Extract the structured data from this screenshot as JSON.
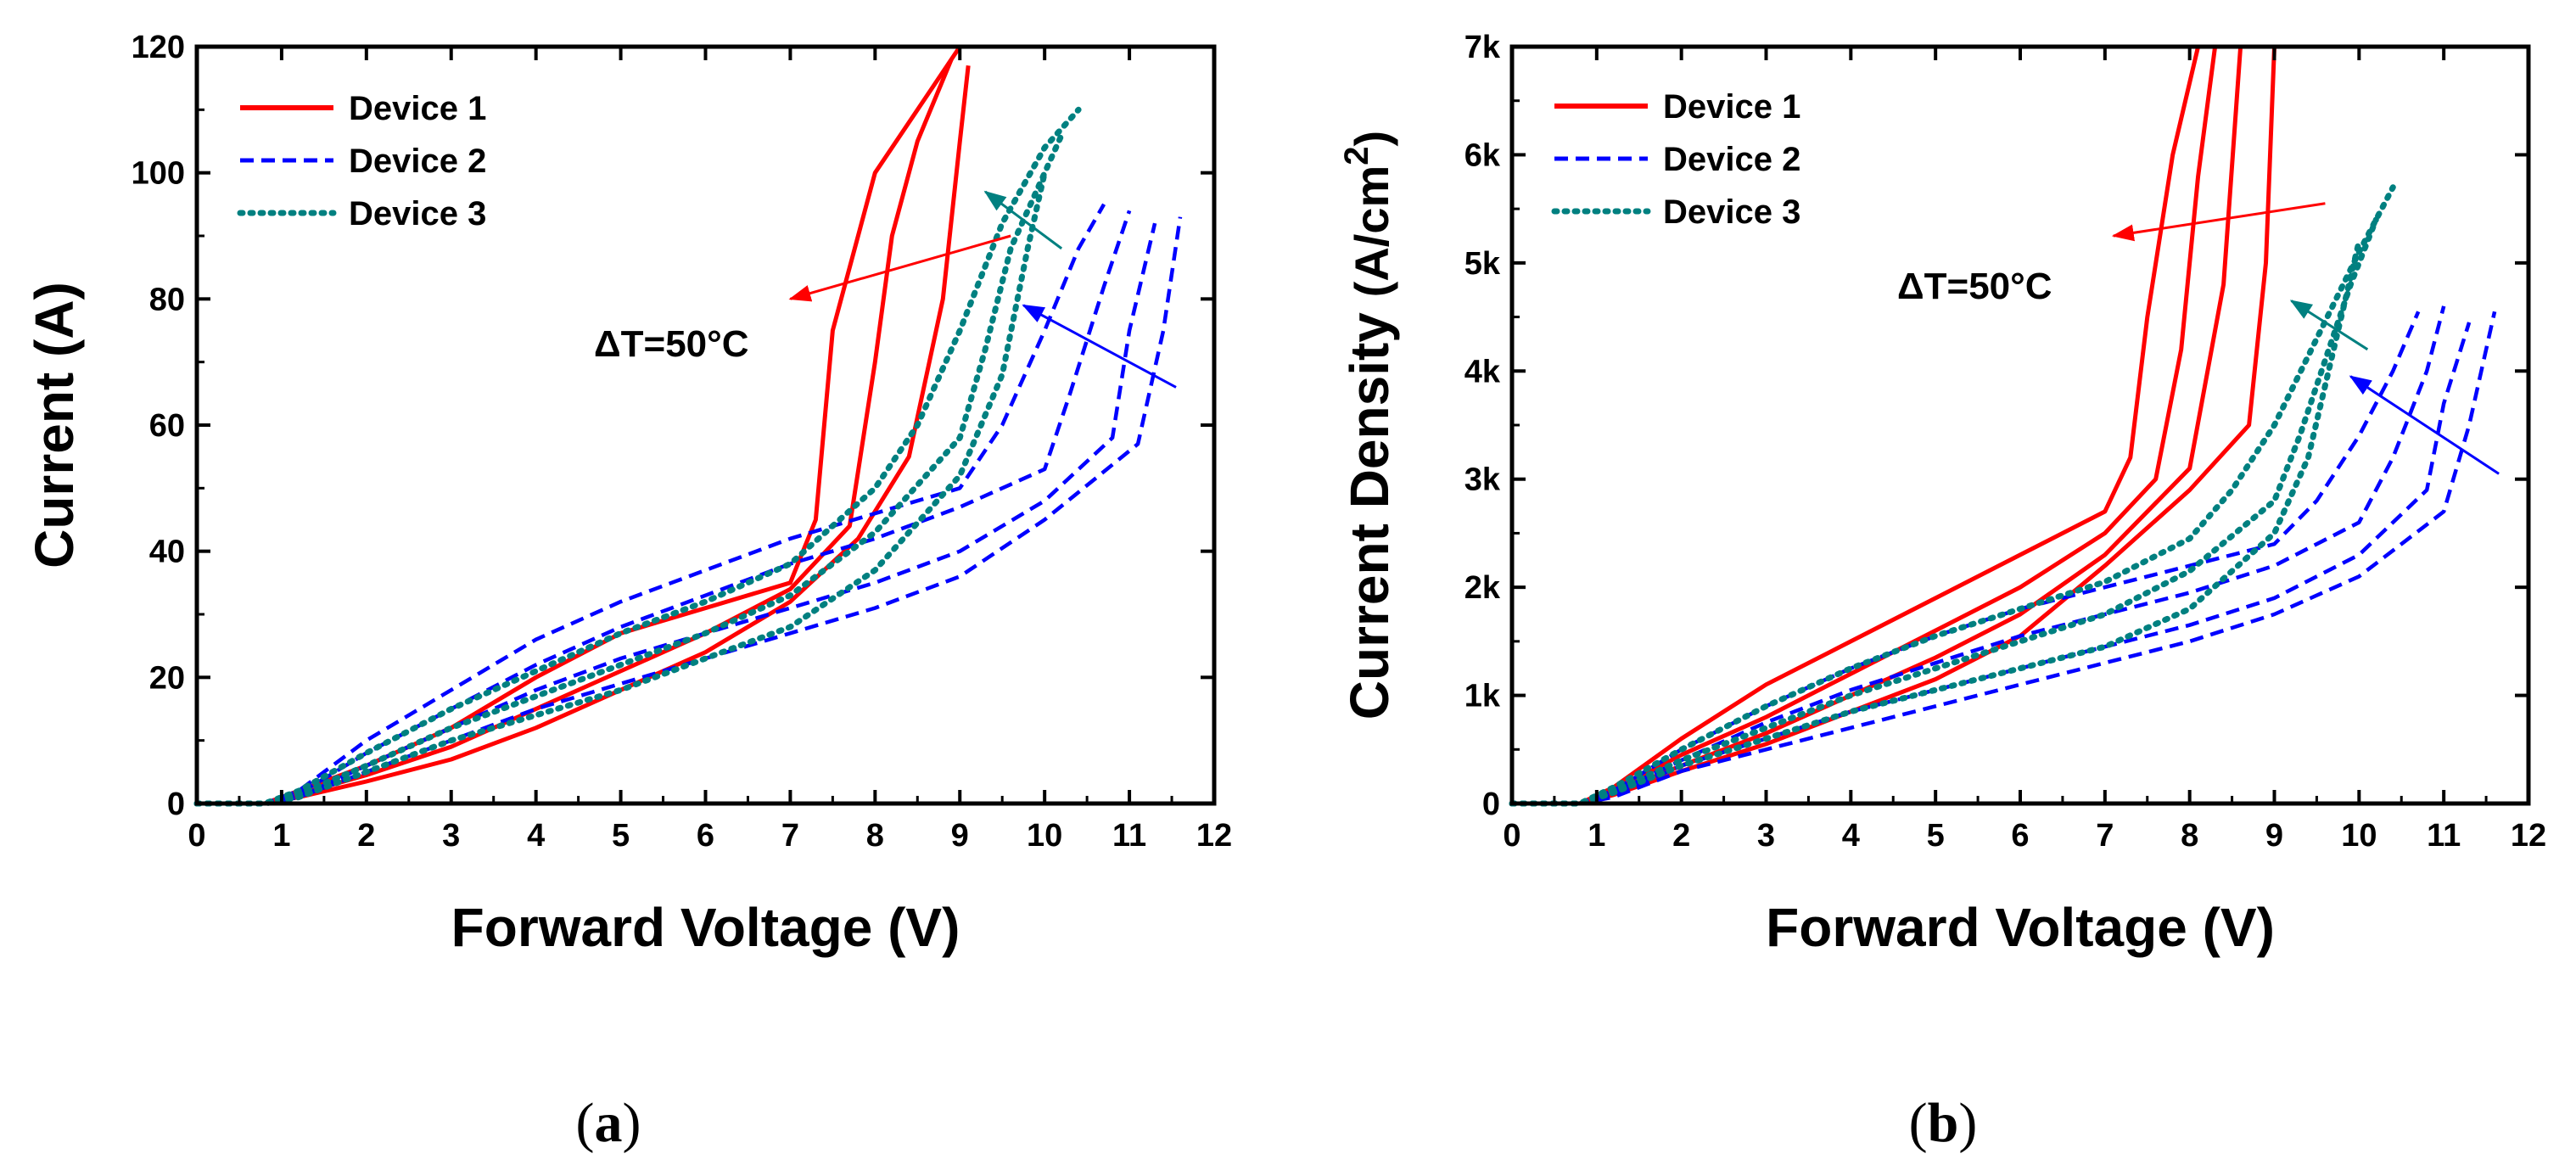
{
  "chart_data": [
    {
      "type": "line",
      "panel_label": "(a)",
      "xlabel": "Forward Voltage (V)",
      "ylabel": "Current (A)",
      "xlim": [
        0,
        12
      ],
      "ylim": [
        0,
        120
      ],
      "x_ticks": [
        "0",
        "1",
        "2",
        "3",
        "4",
        "5",
        "6",
        "7",
        "8",
        "9",
        "10",
        "11",
        "12"
      ],
      "y_ticks": [
        "0",
        "20",
        "40",
        "60",
        "80",
        "100",
        "120"
      ],
      "legend_position": "top-left",
      "legend": [
        {
          "label": "Device 1",
          "color": "#ff0000",
          "style": "solid"
        },
        {
          "label": "Device 2",
          "color": "#0000ff",
          "style": "dashed"
        },
        {
          "label": "Device 3",
          "color": "#008080",
          "style": "dotted"
        }
      ],
      "annotation": "ΔT=50°C",
      "series": [
        {
          "device": "Device 1",
          "color": "#ff0000",
          "style": "solid",
          "x": [
            0,
            0.8,
            1.2,
            2,
            3,
            4,
            5,
            6,
            7,
            7.3,
            7.5,
            8.0,
            8.6,
            9.0
          ],
          "y": [
            0,
            0,
            2,
            6,
            12,
            20,
            27,
            31,
            35,
            45,
            75,
            100,
            112,
            120
          ]
        },
        {
          "device": "Device 1",
          "color": "#ff0000",
          "style": "solid",
          "x": [
            0,
            0.8,
            1.2,
            2,
            3,
            4,
            5,
            6,
            7,
            7.7,
            8.0,
            8.2,
            8.5,
            8.9
          ],
          "y": [
            0,
            0,
            1.5,
            4.5,
            9,
            15,
            21,
            27,
            34,
            44,
            70,
            90,
            105,
            118
          ]
        },
        {
          "device": "Device 1",
          "color": "#ff0000",
          "style": "solid",
          "x": [
            0,
            0.8,
            1.2,
            2,
            3,
            4,
            5,
            6,
            7,
            7.8,
            8.4,
            8.8,
            9.0,
            9.1
          ],
          "y": [
            0,
            0,
            1,
            3.5,
            7,
            12,
            18,
            24,
            32,
            42,
            55,
            80,
            105,
            117
          ]
        },
        {
          "device": "Device 2",
          "color": "#0000ff",
          "style": "dashed",
          "x": [
            0,
            0.8,
            1.2,
            2,
            3,
            4,
            5,
            6,
            7,
            8,
            9,
            9.5,
            10.0,
            10.4,
            10.7
          ],
          "y": [
            0,
            0,
            2,
            10,
            18,
            26,
            32,
            37,
            42,
            46,
            50,
            60,
            75,
            88,
            95
          ]
        },
        {
          "device": "Device 2",
          "color": "#0000ff",
          "style": "dashed",
          "x": [
            0,
            0.8,
            1.2,
            2,
            3,
            4,
            5,
            6,
            7,
            8,
            9,
            10,
            10.3,
            10.7,
            11.0
          ],
          "y": [
            0,
            0,
            1.5,
            8,
            15,
            22,
            28,
            33,
            38,
            42,
            47,
            53,
            65,
            82,
            94
          ]
        },
        {
          "device": "Device 2",
          "color": "#0000ff",
          "style": "dashed",
          "x": [
            0,
            0.8,
            1.2,
            2,
            3,
            4,
            5,
            6,
            7,
            8,
            9,
            10,
            10.8,
            11.0,
            11.3
          ],
          "y": [
            0,
            0,
            1,
            6,
            12,
            18,
            23,
            27,
            31,
            35,
            40,
            48,
            58,
            75,
            92
          ]
        },
        {
          "device": "Device 2",
          "color": "#0000ff",
          "style": "dashed",
          "x": [
            0,
            0.8,
            1.2,
            2,
            3,
            4,
            5,
            6,
            7,
            8,
            9,
            10,
            11.1,
            11.4,
            11.6
          ],
          "y": [
            0,
            0,
            1,
            5,
            10,
            15,
            19,
            23,
            27,
            31,
            36,
            45,
            57,
            75,
            93
          ]
        },
        {
          "device": "Device 3",
          "color": "#008080",
          "style": "dotted",
          "x": [
            0,
            0.8,
            1.2,
            2,
            3,
            4,
            5,
            6,
            7,
            8,
            8.5,
            9.0,
            9.5,
            10.0,
            10.4
          ],
          "y": [
            0,
            0,
            2,
            8,
            15,
            21,
            27,
            32,
            38,
            50,
            60,
            75,
            92,
            104,
            110
          ]
        },
        {
          "device": "Device 3",
          "color": "#008080",
          "style": "dotted",
          "x": [
            0,
            0.8,
            1.2,
            2,
            3,
            4,
            5,
            6,
            7,
            8,
            9,
            9.3,
            9.6,
            10.0,
            10.2
          ],
          "y": [
            0,
            0,
            1.5,
            6,
            12,
            17,
            22,
            27,
            33,
            43,
            58,
            72,
            88,
            100,
            106
          ]
        },
        {
          "device": "Device 3",
          "color": "#008080",
          "style": "dotted",
          "x": [
            0,
            0.8,
            1.2,
            2,
            3,
            4,
            5,
            6,
            7,
            8,
            9,
            9.5,
            9.8,
            10.0
          ],
          "y": [
            0,
            0,
            1,
            5,
            10,
            14,
            18,
            23,
            28,
            37,
            52,
            68,
            88,
            100
          ]
        }
      ],
      "arrows": [
        {
          "color": "#ff0000",
          "from": [
            9.6,
            90
          ],
          "to": [
            7.0,
            80
          ]
        },
        {
          "color": "#008080",
          "from": [
            10.2,
            88
          ],
          "to": [
            9.3,
            97
          ]
        },
        {
          "color": "#0000ff",
          "from": [
            11.55,
            66
          ],
          "to": [
            9.75,
            79
          ]
        }
      ]
    },
    {
      "type": "line",
      "panel_label": "(b)",
      "xlabel": "Forward Voltage (V)",
      "ylabel": "Current Density (A/cm2)",
      "xlim": [
        0,
        12
      ],
      "ylim": [
        0,
        7000
      ],
      "x_ticks": [
        "0",
        "1",
        "2",
        "3",
        "4",
        "5",
        "6",
        "7",
        "8",
        "9",
        "10",
        "11",
        "12"
      ],
      "y_ticks": [
        "0",
        "1k",
        "2k",
        "3k",
        "4k",
        "5k",
        "6k",
        "7k"
      ],
      "legend_position": "top-left",
      "legend": [
        {
          "label": "Device 1",
          "color": "#ff0000",
          "style": "solid"
        },
        {
          "label": "Device 2",
          "color": "#0000ff",
          "style": "dashed"
        },
        {
          "label": "Device 3",
          "color": "#008080",
          "style": "dotted"
        }
      ],
      "annotation": "ΔT=50°C",
      "series": [
        {
          "device": "Device 1",
          "color": "#ff0000",
          "style": "solid",
          "x": [
            0,
            0.8,
            1.2,
            2,
            3,
            4,
            5,
            6,
            7,
            7.3,
            7.5,
            7.8,
            8.1
          ],
          "y": [
            0,
            0,
            150,
            600,
            1100,
            1500,
            1900,
            2300,
            2700,
            3200,
            4500,
            6000,
            7000
          ]
        },
        {
          "device": "Device 1",
          "color": "#ff0000",
          "style": "solid",
          "x": [
            0,
            0.8,
            1.2,
            2,
            3,
            4,
            5,
            6,
            7,
            7.6,
            7.9,
            8.1,
            8.3
          ],
          "y": [
            0,
            0,
            120,
            450,
            800,
            1200,
            1600,
            2000,
            2500,
            3000,
            4200,
            5800,
            7000
          ]
        },
        {
          "device": "Device 1",
          "color": "#ff0000",
          "style": "solid",
          "x": [
            0,
            0.8,
            1.2,
            2,
            3,
            4,
            5,
            6,
            7,
            8,
            8.4,
            8.6
          ],
          "y": [
            0,
            0,
            100,
            350,
            650,
            1000,
            1350,
            1750,
            2300,
            3100,
            4800,
            7000
          ]
        },
        {
          "device": "Device 1",
          "color": "#ff0000",
          "style": "solid",
          "x": [
            0,
            0.8,
            1.2,
            2,
            3,
            4,
            5,
            6,
            7,
            8,
            8.7,
            8.9,
            9.0
          ],
          "y": [
            0,
            0,
            80,
            300,
            550,
            850,
            1150,
            1550,
            2200,
            2900,
            3500,
            5000,
            7000
          ]
        },
        {
          "device": "Device 2",
          "color": "#0000ff",
          "style": "dashed",
          "x": [
            0,
            0.8,
            1.2,
            2,
            3,
            4,
            5,
            6,
            7,
            8,
            9,
            9.5,
            10.0,
            10.4,
            10.7
          ],
          "y": [
            0,
            0,
            120,
            500,
            900,
            1250,
            1550,
            1800,
            2000,
            2200,
            2400,
            2800,
            3400,
            4000,
            4550
          ]
        },
        {
          "device": "Device 2",
          "color": "#0000ff",
          "style": "dashed",
          "x": [
            0,
            0.8,
            1.2,
            2,
            3,
            4,
            5,
            6,
            7,
            8,
            9,
            10,
            10.4,
            10.8,
            11.0
          ],
          "y": [
            0,
            0,
            100,
            400,
            750,
            1050,
            1300,
            1550,
            1750,
            1950,
            2200,
            2600,
            3200,
            4000,
            4600
          ]
        },
        {
          "device": "Device 2",
          "color": "#0000ff",
          "style": "dashed",
          "x": [
            0,
            0.8,
            1.2,
            2,
            3,
            4,
            5,
            6,
            7,
            8,
            9,
            10,
            10.8,
            11.0,
            11.3
          ],
          "y": [
            0,
            0,
            80,
            350,
            600,
            850,
            1050,
            1250,
            1450,
            1650,
            1900,
            2300,
            2900,
            3700,
            4450
          ]
        },
        {
          "device": "Device 2",
          "color": "#0000ff",
          "style": "dashed",
          "x": [
            0,
            0.8,
            1.2,
            2,
            3,
            4,
            5,
            6,
            7,
            8,
            9,
            10,
            11,
            11.3,
            11.6
          ],
          "y": [
            0,
            0,
            60,
            300,
            500,
            700,
            900,
            1100,
            1300,
            1500,
            1750,
            2100,
            2700,
            3500,
            4550
          ]
        },
        {
          "device": "Device 3",
          "color": "#008080",
          "style": "dotted",
          "x": [
            0,
            0.8,
            1.2,
            2,
            3,
            4,
            5,
            6,
            7,
            8,
            8.5,
            9.0,
            9.5,
            10.0,
            10.4
          ],
          "y": [
            0,
            0,
            150,
            500,
            900,
            1250,
            1550,
            1800,
            2050,
            2450,
            2900,
            3500,
            4300,
            5100,
            5700
          ]
        },
        {
          "device": "Device 3",
          "color": "#008080",
          "style": "dotted",
          "x": [
            0,
            0.8,
            1.2,
            2,
            3,
            4,
            5,
            6,
            7,
            8,
            9,
            9.3,
            9.6,
            9.9,
            10.2
          ],
          "y": [
            0,
            0,
            120,
            400,
            700,
            1000,
            1250,
            1500,
            1750,
            2150,
            2800,
            3400,
            4100,
            4800,
            5400
          ]
        },
        {
          "device": "Device 3",
          "color": "#008080",
          "style": "dotted",
          "x": [
            0,
            0.8,
            1.2,
            2,
            3,
            4,
            5,
            6,
            7,
            8,
            9,
            9.4,
            9.7,
            10.0
          ],
          "y": [
            0,
            0,
            100,
            350,
            600,
            850,
            1050,
            1250,
            1450,
            1800,
            2500,
            3200,
            4200,
            5200
          ]
        }
      ],
      "arrows": [
        {
          "color": "#ff0000",
          "from": [
            9.6,
            5550
          ],
          "to": [
            7.1,
            5250
          ]
        },
        {
          "color": "#008080",
          "from": [
            10.1,
            4200
          ],
          "to": [
            9.2,
            4650
          ]
        },
        {
          "color": "#0000ff",
          "from": [
            11.65,
            3050
          ],
          "to": [
            9.9,
            3950
          ]
        }
      ]
    }
  ]
}
